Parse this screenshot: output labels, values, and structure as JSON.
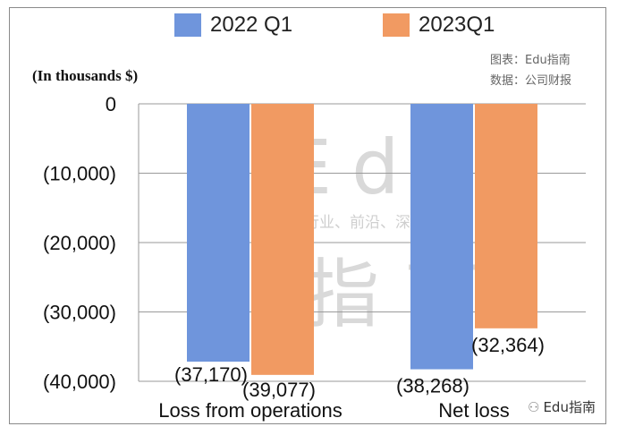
{
  "legend": {
    "items": [
      {
        "label": "2022 Q1",
        "color": "#6f95dc"
      },
      {
        "label": "2023Q1",
        "color": "#f19a62"
      }
    ]
  },
  "units_label": "(In thousands $)",
  "source": {
    "line1": "图表：Edu指南",
    "line2": "数据：公司财报"
  },
  "watermark": {
    "big_latin": "Edu",
    "tagline": "教育行业、前沿、深度、独家",
    "big_cn": "指南"
  },
  "footer": {
    "icon": "wechat-icon",
    "text": "Edu指南"
  },
  "chart_data": {
    "type": "bar",
    "categories": [
      "Loss from operations",
      "Net loss"
    ],
    "series": [
      {
        "name": "2022 Q1",
        "values": [
          -37170,
          -38268
        ],
        "labels": [
          "(37,170)",
          "(38,268)"
        ],
        "color": "#6f95dc"
      },
      {
        "name": "2023Q1",
        "values": [
          -39077,
          -32364
        ],
        "labels": [
          "(39,077)",
          "(32,364)"
        ],
        "color": "#f19a62"
      }
    ],
    "ylim": [
      -40000,
      0
    ],
    "yticks": [
      0,
      -10000,
      -20000,
      -30000,
      -40000
    ],
    "ytick_labels": [
      "0",
      "(10,000)",
      "(20,000)",
      "(30,000)",
      "(40,000)"
    ],
    "grid": true,
    "legend_position": "top"
  }
}
